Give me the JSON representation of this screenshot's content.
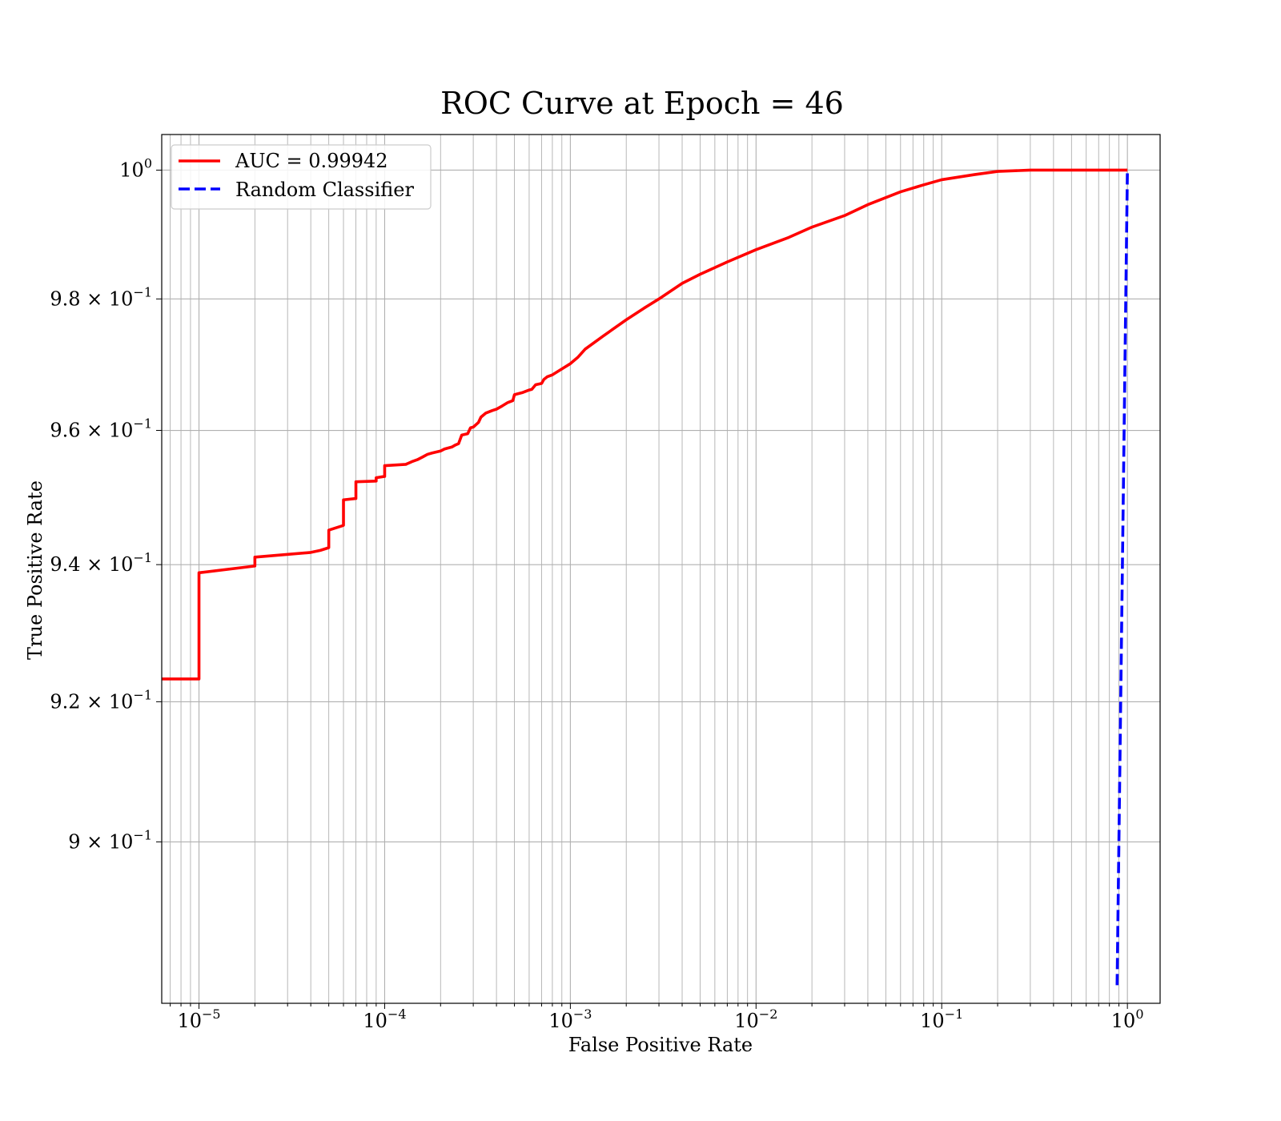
{
  "chart_data": {
    "type": "line",
    "title": "ROC Curve at Epoch = 46",
    "xlabel": "False Positive Rate",
    "ylabel": "True Positive Rate",
    "xscale": "log",
    "yscale": "log",
    "xlim": [
      6.3e-06,
      1.5
    ],
    "ylim": [
      0.8775,
      1.0056
    ],
    "grid": "both (major and minor)",
    "legend_position": "top-left",
    "x_ticks": [
      {
        "value": 1e-05,
        "base": "10",
        "exp": "−5"
      },
      {
        "value": 0.0001,
        "base": "10",
        "exp": "−4"
      },
      {
        "value": 0.001,
        "base": "10",
        "exp": "−3"
      },
      {
        "value": 0.01,
        "base": "10",
        "exp": "−2"
      },
      {
        "value": 0.1,
        "base": "10",
        "exp": "−1"
      },
      {
        "value": 1,
        "base": "10",
        "exp": "0"
      }
    ],
    "y_ticks": [
      {
        "value": 1.0,
        "base": "10",
        "exp": "0"
      },
      {
        "value": 0.98,
        "base": "9.8 × 10",
        "exp": "−1"
      },
      {
        "value": 0.96,
        "base": "9.6 × 10",
        "exp": "−1"
      },
      {
        "value": 0.94,
        "base": "9.4 × 10",
        "exp": "−1"
      },
      {
        "value": 0.92,
        "base": "9.2 × 10",
        "exp": "−1"
      },
      {
        "value": 0.9,
        "base": "9 × 10",
        "exp": "−1"
      }
    ],
    "series": [
      {
        "name": "AUC = 0.99942",
        "color": "#ff0000",
        "style": "solid",
        "x": [
          6.3e-06,
          1e-05,
          1e-05,
          2e-05,
          2e-05,
          4e-05,
          4.5e-05,
          5e-05,
          5e-05,
          6e-05,
          6e-05,
          7e-05,
          7e-05,
          9e-05,
          9e-05,
          0.0001,
          0.0001,
          0.00013,
          0.00014,
          0.00015,
          0.00016,
          0.00017,
          0.00018,
          0.0002,
          0.00021,
          0.00023,
          0.00024,
          0.00025,
          0.00026,
          0.00028,
          0.00029,
          0.0003,
          0.00032,
          0.00033,
          0.00035,
          0.00038,
          0.0004,
          0.00043,
          0.00046,
          0.00049,
          0.0005,
          0.00055,
          0.0006,
          0.00062,
          0.00065,
          0.0007,
          0.00072,
          0.00075,
          0.0008,
          0.0009,
          0.001,
          0.0011,
          0.0012,
          0.0015,
          0.002,
          0.0025,
          0.003,
          0.004,
          0.005,
          0.007,
          0.01,
          0.015,
          0.02,
          0.03,
          0.04,
          0.06,
          0.08,
          0.1,
          0.15,
          0.2,
          0.3,
          0.5,
          1.0
        ],
        "y": [
          0.9233,
          0.9233,
          0.9388,
          0.9398,
          0.9411,
          0.9418,
          0.9421,
          0.9425,
          0.9451,
          0.9458,
          0.9496,
          0.9498,
          0.9523,
          0.9524,
          0.9529,
          0.9531,
          0.9547,
          0.9549,
          0.9553,
          0.9556,
          0.956,
          0.9564,
          0.9566,
          0.9569,
          0.9572,
          0.9575,
          0.9578,
          0.958,
          0.9593,
          0.9595,
          0.9604,
          0.9605,
          0.9612,
          0.962,
          0.9626,
          0.963,
          0.9632,
          0.9637,
          0.9642,
          0.9645,
          0.9654,
          0.9657,
          0.9661,
          0.9662,
          0.9669,
          0.9671,
          0.9677,
          0.9681,
          0.9684,
          0.9693,
          0.9701,
          0.9711,
          0.9723,
          0.9743,
          0.9768,
          0.9786,
          0.98,
          0.9824,
          0.9838,
          0.9857,
          0.9876,
          0.9895,
          0.9911,
          0.9929,
          0.9946,
          0.9966,
          0.9977,
          0.9985,
          0.9993,
          0.9998,
          1.0,
          1.0,
          1.0
        ]
      },
      {
        "name": "Random Classifier",
        "color": "#0000ff",
        "style": "dashed",
        "x": [
          0.88,
          0.92,
          0.96,
          1.0
        ],
        "y": [
          0.88,
          0.92,
          0.96,
          1.0
        ]
      }
    ]
  }
}
